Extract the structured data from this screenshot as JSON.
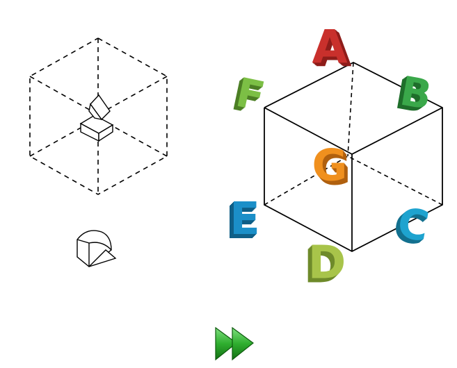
{
  "letters": [
    {
      "key": "A",
      "text": "A",
      "front": "#c9302c",
      "shade": "#8e1d1a"
    },
    {
      "key": "B",
      "text": "B",
      "front": "#3aa84a",
      "shade": "#1f6e2b"
    },
    {
      "key": "C",
      "text": "C",
      "front": "#1ea3cf",
      "shade": "#12708f"
    },
    {
      "key": "D",
      "text": "D",
      "front": "#a8c44a",
      "shade": "#6e8a2a"
    },
    {
      "key": "E",
      "text": "E",
      "front": "#1b8fc8",
      "shade": "#0f5f87"
    },
    {
      "key": "F",
      "text": "F",
      "front": "#7cbf45",
      "shade": "#4c7f25"
    },
    {
      "key": "G",
      "text": "G",
      "front": "#f0901e",
      "shade": "#b0600f"
    }
  ],
  "colors": {
    "button": "#2fae2f",
    "button_dark": "#1d7a1d",
    "line": "#000000"
  },
  "icons": {
    "next": "fast-forward-icon"
  }
}
